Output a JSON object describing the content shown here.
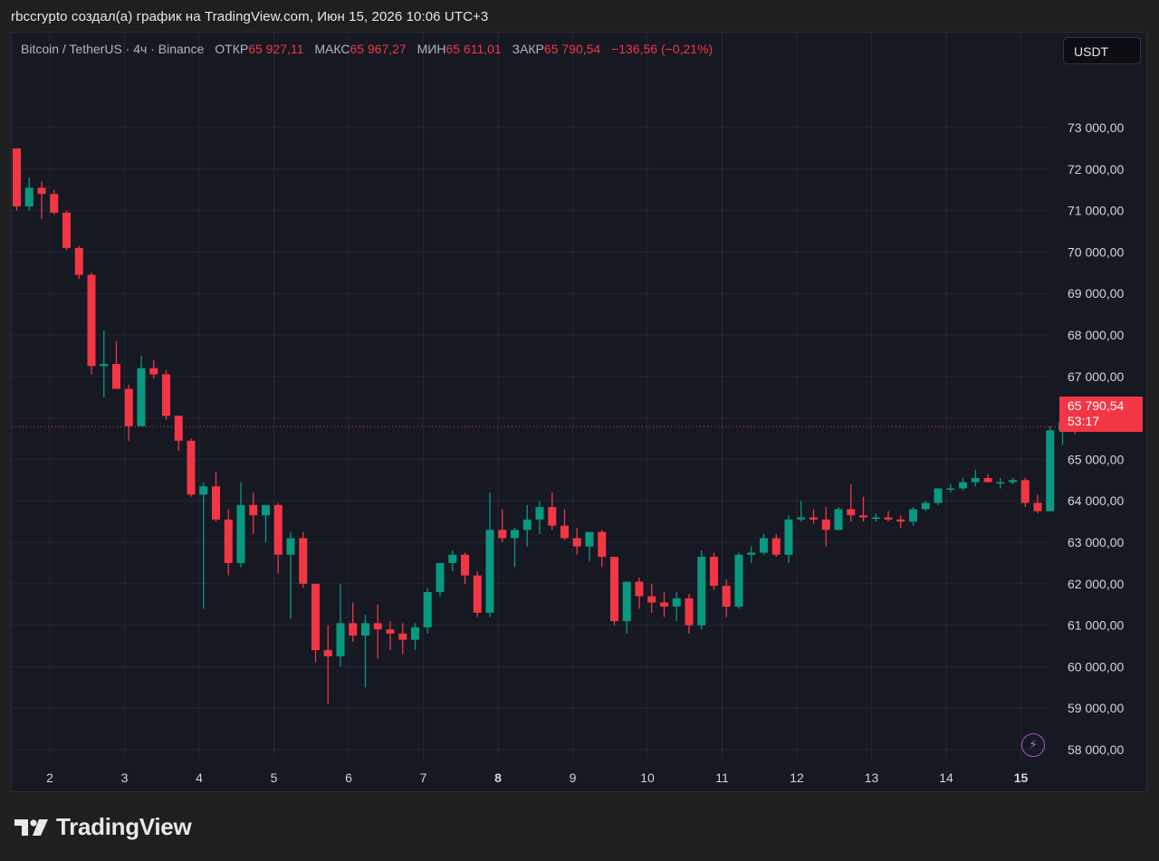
{
  "credit": "rbccrypto создал(а) график на TradingView.com, Июн 15, 2026 10:06 UTC+3",
  "legend": {
    "symbol": "Bitcoin / TetherUS · 4ч · Binance",
    "open_label": "ОТКР",
    "open_value": "65 927,11",
    "high_label": "МАКС",
    "high_value": "65 967,27",
    "low_label": "МИН",
    "low_value": "65 611,01",
    "close_label": "ЗАКР",
    "close_value": "65 790,54",
    "change": "−136,56 (−0,21%)"
  },
  "currency_button": "USDT",
  "price_tag": {
    "price": "65 790,54",
    "countdown": "53:17"
  },
  "bolt_icon": "lightning-icon",
  "brand": {
    "text": "TradingView",
    "logo_icon": "tradingview-logo-icon"
  },
  "colors": {
    "up": "#089981",
    "down": "#f23645",
    "background": "#161822",
    "grid": "#232632"
  },
  "chart_data": {
    "type": "candlestick",
    "y_ticks": [
      58000,
      59000,
      60000,
      61000,
      62000,
      63000,
      64000,
      65000,
      66000,
      67000,
      68000,
      69000,
      70000,
      71000,
      72000,
      73000
    ],
    "y_tick_labels": [
      "58 000,00",
      "59 000,00",
      "60 000,00",
      "61 000,00",
      "62 000,00",
      "63 000,00",
      "64 000,00",
      "65 000,00",
      "66 000,00",
      "67 000,00",
      "68 000,00",
      "69 000,00",
      "70 000,00",
      "71 000,00",
      "72 000,00",
      "73 000,00"
    ],
    "ylim": [
      57600,
      73800
    ],
    "x_ticks": [
      {
        "label": "2",
        "day": 2,
        "bold": false
      },
      {
        "label": "3",
        "day": 3,
        "bold": false
      },
      {
        "label": "4",
        "day": 4,
        "bold": false
      },
      {
        "label": "5",
        "day": 5,
        "bold": false
      },
      {
        "label": "6",
        "day": 6,
        "bold": false
      },
      {
        "label": "7",
        "day": 7,
        "bold": false
      },
      {
        "label": "8",
        "day": 8,
        "bold": true
      },
      {
        "label": "9",
        "day": 9,
        "bold": false
      },
      {
        "label": "10",
        "day": 10,
        "bold": false
      },
      {
        "label": "11",
        "day": 11,
        "bold": false
      },
      {
        "label": "12",
        "day": 12,
        "bold": false
      },
      {
        "label": "13",
        "day": 13,
        "bold": false
      },
      {
        "label": "14",
        "day": 14,
        "bold": false
      },
      {
        "label": "15",
        "day": 15,
        "bold": true
      }
    ],
    "last_price": 65790.54,
    "candles": [
      [
        72500,
        72500,
        71000,
        71100
      ],
      [
        71100,
        71800,
        71000,
        71550
      ],
      [
        71550,
        71700,
        70800,
        71400
      ],
      [
        71400,
        71500,
        70900,
        70950
      ],
      [
        70950,
        71000,
        70050,
        70100
      ],
      [
        70100,
        70150,
        69350,
        69450
      ],
      [
        69450,
        69500,
        67050,
        67250
      ],
      [
        67250,
        68100,
        66500,
        67300
      ],
      [
        67300,
        67850,
        66700,
        66700
      ],
      [
        66700,
        66800,
        65450,
        65800
      ],
      [
        65800,
        67500,
        65800,
        67200
      ],
      [
        67200,
        67400,
        66950,
        67050
      ],
      [
        67050,
        67150,
        65950,
        66050
      ],
      [
        66050,
        66050,
        65200,
        65450
      ],
      [
        65450,
        65500,
        64100,
        64150
      ],
      [
        64150,
        64450,
        61400,
        64350
      ],
      [
        64350,
        64700,
        63500,
        63550
      ],
      [
        63550,
        63800,
        62200,
        62500
      ],
      [
        62500,
        64450,
        62400,
        63900
      ],
      [
        63900,
        64200,
        63200,
        63650
      ],
      [
        63650,
        63900,
        63000,
        63900
      ],
      [
        63900,
        63950,
        62250,
        62700
      ],
      [
        62700,
        63250,
        61150,
        63100
      ],
      [
        63100,
        63250,
        61900,
        62000
      ],
      [
        62000,
        62000,
        60100,
        60400
      ],
      [
        60400,
        61000,
        59100,
        60250
      ],
      [
        60250,
        62000,
        60000,
        61050
      ],
      [
        61050,
        61550,
        60600,
        60750
      ],
      [
        60750,
        61250,
        59500,
        61050
      ],
      [
        61050,
        61500,
        60200,
        60900
      ],
      [
        60900,
        61100,
        60400,
        60800
      ],
      [
        60800,
        61050,
        60300,
        60650
      ],
      [
        60650,
        61050,
        60400,
        60950
      ],
      [
        60950,
        61900,
        60800,
        61800
      ],
      [
        61800,
        62500,
        61700,
        62500
      ],
      [
        62500,
        62800,
        62300,
        62700
      ],
      [
        62700,
        62750,
        62000,
        62200
      ],
      [
        62200,
        62300,
        61200,
        61300
      ],
      [
        61300,
        64200,
        61200,
        63300
      ],
      [
        63300,
        63800,
        63000,
        63100
      ],
      [
        63100,
        63350,
        62400,
        63300
      ],
      [
        63300,
        63900,
        62900,
        63550
      ],
      [
        63550,
        64000,
        63200,
        63850
      ],
      [
        63850,
        64200,
        63300,
        63400
      ],
      [
        63400,
        63800,
        63050,
        63100
      ],
      [
        63100,
        63350,
        62700,
        62900
      ],
      [
        62900,
        63250,
        62550,
        63250
      ],
      [
        63250,
        63300,
        62400,
        62650
      ],
      [
        62650,
        62650,
        61000,
        61100
      ],
      [
        61100,
        62000,
        60800,
        62050
      ],
      [
        62050,
        62150,
        61400,
        61700
      ],
      [
        61700,
        62000,
        61300,
        61550
      ],
      [
        61550,
        61800,
        61200,
        61450
      ],
      [
        61450,
        61800,
        61100,
        61650
      ],
      [
        61650,
        61750,
        60800,
        61000
      ],
      [
        61000,
        62800,
        60900,
        62650
      ],
      [
        62650,
        62750,
        61850,
        61950
      ],
      [
        61950,
        62100,
        61200,
        61450
      ],
      [
        61450,
        62750,
        61400,
        62700
      ],
      [
        62700,
        62900,
        62500,
        62750
      ],
      [
        62750,
        63200,
        62700,
        63100
      ],
      [
        63100,
        63200,
        62650,
        62700
      ],
      [
        62700,
        63650,
        62500,
        63550
      ],
      [
        63550,
        64000,
        63500,
        63600
      ],
      [
        63600,
        63800,
        63450,
        63550
      ],
      [
        63550,
        63850,
        62900,
        63300
      ],
      [
        63300,
        63850,
        63300,
        63800
      ],
      [
        63800,
        64400,
        63500,
        63650
      ],
      [
        63650,
        64100,
        63500,
        63600
      ],
      [
        63600,
        63700,
        63500,
        63600
      ],
      [
        63600,
        63750,
        63500,
        63550
      ],
      [
        63550,
        63650,
        63350,
        63500
      ],
      [
        63500,
        63850,
        63400,
        63800
      ],
      [
        63800,
        64000,
        63750,
        63950
      ],
      [
        63950,
        64300,
        63900,
        64300
      ],
      [
        64300,
        64400,
        64200,
        64300
      ],
      [
        64300,
        64550,
        64250,
        64450
      ],
      [
        64450,
        64750,
        64350,
        64550
      ],
      [
        64550,
        64650,
        64450,
        64450
      ],
      [
        64450,
        64550,
        64300,
        64450
      ],
      [
        64450,
        64550,
        64400,
        64500
      ],
      [
        64500,
        64550,
        63850,
        63950
      ],
      [
        63950,
        64150,
        63700,
        63750
      ],
      [
        63750,
        65800,
        63750,
        65700
      ],
      [
        65700,
        66050,
        65350,
        65900
      ],
      [
        65927.11,
        65967.27,
        65611.01,
        65790.54
      ]
    ]
  }
}
